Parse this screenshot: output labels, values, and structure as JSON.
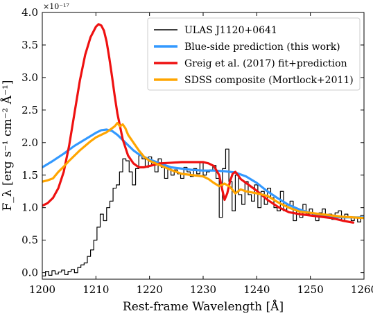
{
  "chart_data": {
    "type": "line",
    "xlabel": "Rest-frame Wavelength [Å]",
    "ylabel": "F_λ [erg s⁻¹ cm⁻² Å⁻¹]",
    "y_multiplier_label": "×10⁻¹⁷",
    "xlim": [
      1200,
      1260
    ],
    "ylim": [
      -0.1,
      4.0
    ],
    "x_ticks": [
      1200,
      1210,
      1220,
      1230,
      1240,
      1250,
      1260
    ],
    "y_ticks": [
      0.0,
      0.5,
      1.0,
      1.5,
      2.0,
      2.5,
      3.0,
      3.5,
      4.0
    ],
    "x_tick_labels": [
      "1200",
      "1210",
      "1220",
      "1230",
      "1240",
      "1250",
      "1260"
    ],
    "y_tick_labels": [
      "0.0",
      "0.5",
      "1.0",
      "1.5",
      "2.0",
      "2.5",
      "3.0",
      "3.5",
      "4.0"
    ],
    "grid": false,
    "legend_position": "top-right",
    "series": [
      {
        "name": "ULAS J1120+0641",
        "color": "#000000",
        "style": "step",
        "x": [
          1200,
          1200.6,
          1201.2,
          1201.8,
          1202.4,
          1203.0,
          1203.6,
          1204.2,
          1204.8,
          1205.4,
          1206.0,
          1206.6,
          1207.2,
          1207.8,
          1208.4,
          1209.0,
          1209.6,
          1210.2,
          1210.8,
          1211.4,
          1212.0,
          1212.6,
          1213.2,
          1213.8,
          1214.4,
          1215.0,
          1215.6,
          1216.2,
          1216.8,
          1217.4,
          1218.0,
          1218.6,
          1219.2,
          1219.8,
          1220.4,
          1221.0,
          1221.6,
          1222.2,
          1222.8,
          1223.4,
          1224.0,
          1224.6,
          1225.2,
          1225.8,
          1226.4,
          1227.0,
          1227.6,
          1228.2,
          1228.8,
          1229.4,
          1230.0,
          1230.6,
          1231.2,
          1231.8,
          1232.4,
          1233.0,
          1233.6,
          1234.2,
          1234.8,
          1235.4,
          1236.0,
          1236.6,
          1237.2,
          1237.8,
          1238.4,
          1239.0,
          1239.6,
          1240.2,
          1240.8,
          1241.4,
          1242.0,
          1242.6,
          1243.2,
          1243.8,
          1244.4,
          1245.0,
          1245.6,
          1246.2,
          1246.8,
          1247.4,
          1248.0,
          1248.6,
          1249.2,
          1249.8,
          1250.4,
          1251.0,
          1251.6,
          1252.2,
          1252.8,
          1253.4,
          1254.0,
          1254.6,
          1255.2,
          1255.8,
          1256.4,
          1257.0,
          1257.6,
          1258.2,
          1258.8,
          1259.4
        ],
        "y": [
          -0.05,
          0.02,
          -0.04,
          0.03,
          -0.02,
          0.01,
          0.04,
          -0.03,
          0.02,
          0.05,
          0.0,
          0.08,
          0.12,
          0.15,
          0.25,
          0.35,
          0.5,
          0.7,
          0.9,
          0.8,
          1.0,
          1.1,
          1.3,
          1.35,
          1.55,
          1.75,
          1.72,
          1.55,
          1.35,
          1.6,
          1.8,
          1.75,
          1.62,
          1.78,
          1.65,
          1.55,
          1.75,
          1.62,
          1.45,
          1.62,
          1.5,
          1.58,
          1.52,
          1.45,
          1.62,
          1.55,
          1.48,
          1.6,
          1.52,
          1.7,
          1.5,
          1.55,
          1.58,
          1.65,
          1.45,
          0.85,
          1.6,
          1.9,
          1.4,
          0.95,
          1.5,
          1.2,
          1.05,
          1.4,
          1.2,
          1.1,
          1.35,
          1.0,
          1.25,
          1.05,
          1.3,
          1.15,
          1.0,
          0.95,
          1.25,
          0.95,
          1.05,
          1.1,
          0.8,
          0.95,
          0.85,
          1.05,
          0.9,
          0.98,
          0.88,
          0.8,
          0.92,
          0.98,
          0.85,
          0.9,
          0.82,
          0.92,
          0.95,
          0.8,
          0.9,
          0.85,
          0.8,
          0.85,
          0.78,
          0.88
        ]
      },
      {
        "name": "Blue-side prediction (this work)",
        "color": "#3399ff",
        "style": "line",
        "x": [
          1200,
          1202,
          1204,
          1206,
          1208,
          1210,
          1211,
          1212,
          1213,
          1214,
          1215,
          1216,
          1217,
          1218,
          1220,
          1222,
          1224,
          1226,
          1228,
          1230,
          1232,
          1234,
          1236,
          1238,
          1240,
          1242,
          1244,
          1246,
          1248,
          1250,
          1252,
          1254,
          1256,
          1258,
          1260
        ],
        "y": [
          1.62,
          1.72,
          1.83,
          1.95,
          2.05,
          2.15,
          2.19,
          2.2,
          2.18,
          2.12,
          2.04,
          1.96,
          1.88,
          1.82,
          1.74,
          1.68,
          1.62,
          1.6,
          1.58,
          1.57,
          1.57,
          1.56,
          1.54,
          1.48,
          1.38,
          1.25,
          1.14,
          1.04,
          0.97,
          0.92,
          0.88,
          0.86,
          0.85,
          0.85,
          0.85
        ]
      },
      {
        "name": "Greig et al. (2017) fit+prediction",
        "color": "#ee1111",
        "style": "line",
        "x": [
          1200,
          1201,
          1202,
          1203,
          1204,
          1205,
          1206,
          1207,
          1208,
          1209,
          1210,
          1210.5,
          1211,
          1211.5,
          1212,
          1212.5,
          1213,
          1213.5,
          1214,
          1215,
          1216,
          1217,
          1218,
          1219,
          1220,
          1221,
          1222,
          1224,
          1226,
          1228,
          1230,
          1231,
          1232,
          1233,
          1233.5,
          1234,
          1234.5,
          1235,
          1235.5,
          1236,
          1236.5,
          1237,
          1238,
          1240,
          1242,
          1244,
          1246,
          1248,
          1250,
          1252,
          1254,
          1256,
          1258
        ],
        "y": [
          1.03,
          1.07,
          1.15,
          1.3,
          1.55,
          1.95,
          2.45,
          2.95,
          3.35,
          3.62,
          3.78,
          3.82,
          3.8,
          3.72,
          3.55,
          3.3,
          3.02,
          2.72,
          2.45,
          2.05,
          1.8,
          1.68,
          1.62,
          1.62,
          1.64,
          1.66,
          1.68,
          1.69,
          1.7,
          1.7,
          1.7,
          1.68,
          1.64,
          1.5,
          1.3,
          1.12,
          1.22,
          1.4,
          1.52,
          1.55,
          1.5,
          1.44,
          1.38,
          1.26,
          1.12,
          1.01,
          0.93,
          0.9,
          0.88,
          0.86,
          0.84,
          0.8,
          0.77
        ]
      },
      {
        "name": "SDSS composite (Mortlock+2011)",
        "color": "#ffa500",
        "style": "line",
        "x": [
          1200,
          1201,
          1202,
          1203,
          1204,
          1205,
          1206,
          1207,
          1208,
          1209,
          1210,
          1211,
          1212,
          1213,
          1213.5,
          1214,
          1214.5,
          1215,
          1215.5,
          1216,
          1217,
          1218,
          1219,
          1220,
          1222,
          1224,
          1226,
          1228,
          1230,
          1231,
          1232,
          1233,
          1234,
          1235,
          1236,
          1237,
          1238,
          1240,
          1242,
          1244,
          1246,
          1248,
          1250,
          1252,
          1254,
          1256,
          1258,
          1260
        ],
        "y": [
          1.4,
          1.42,
          1.45,
          1.55,
          1.63,
          1.72,
          1.8,
          1.88,
          1.95,
          2.02,
          2.08,
          2.12,
          2.16,
          2.22,
          2.25,
          2.3,
          2.25,
          2.28,
          2.22,
          2.12,
          2.0,
          1.88,
          1.78,
          1.72,
          1.65,
          1.58,
          1.52,
          1.5,
          1.48,
          1.44,
          1.38,
          1.33,
          1.37,
          1.32,
          1.22,
          1.28,
          1.25,
          1.22,
          1.18,
          1.08,
          1.0,
          0.94,
          0.92,
          0.9,
          0.88,
          0.86,
          0.85,
          0.84
        ]
      }
    ]
  }
}
